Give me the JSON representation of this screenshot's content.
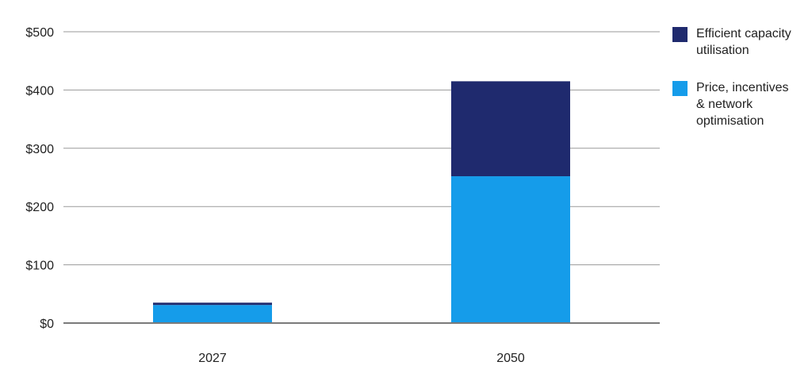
{
  "chart_data": {
    "type": "bar",
    "stacked": true,
    "title": "",
    "xlabel": "",
    "ylabel": "",
    "categories": [
      "2027",
      "2050"
    ],
    "series": [
      {
        "name": "Price, incentives & network optimisation",
        "color": "#159cea",
        "values": [
          31,
          252
        ]
      },
      {
        "name": "Efficient capacity utilisation",
        "color": "#1f2a6e",
        "values": [
          4,
          163
        ]
      }
    ],
    "ylim": [
      0,
      500
    ],
    "yticks": [
      0,
      100,
      200,
      300,
      400,
      500
    ],
    "ytick_labels": [
      "$0",
      "$100",
      "$200",
      "$300",
      "$400",
      "$500"
    ],
    "grid": true,
    "legend_position": "right"
  },
  "legend": {
    "items": [
      {
        "label_lines": [
          "Efficient capacity",
          "utilisation"
        ],
        "color": "#1f2a6e"
      },
      {
        "label_lines": [
          "Price, incentives",
          "& network",
          "optimisation"
        ],
        "color": "#159cea"
      }
    ]
  }
}
